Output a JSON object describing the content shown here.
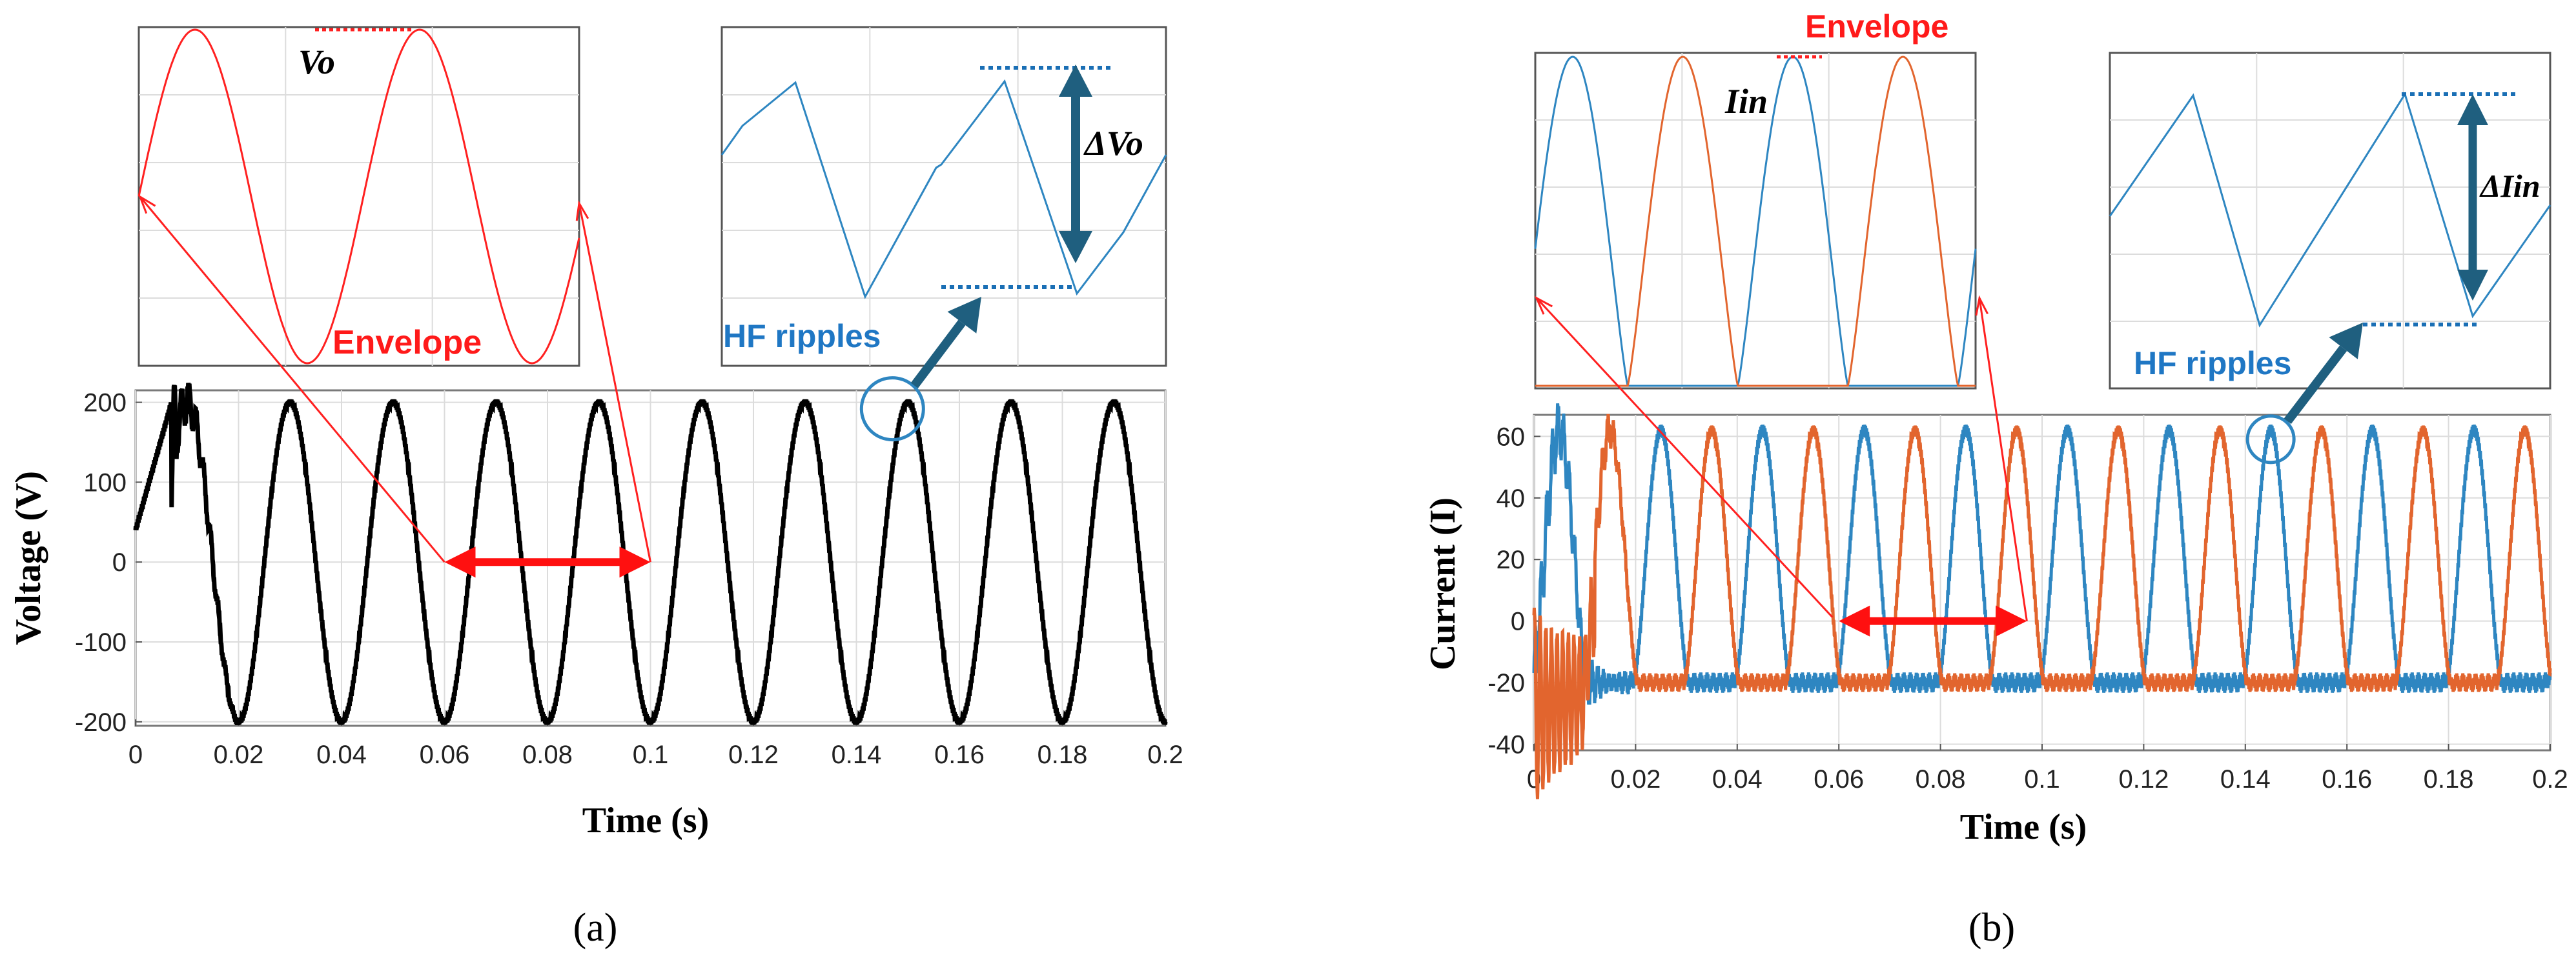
{
  "colors": {
    "series_black": "#000000",
    "series_blue": "#2e86c1",
    "series_orange": "#e2652e",
    "envelope_red": "#ff2020",
    "envelope_label": "#ff1a1a",
    "hf_label": "#1f77c4",
    "dark_teal": "#1f5f7f",
    "dashed_blue": "#1a6fb5",
    "arrow_red": "#ff1010",
    "grid": "#dcdcdc"
  },
  "panel_labels": [
    "(a)",
    "(b)"
  ],
  "chart_data": [
    {
      "type": "line",
      "panel": "(a)",
      "xlabel": "Time (s)",
      "ylabel": "Voltage (V)",
      "xlim": [
        0,
        0.2
      ],
      "ylim": [
        -205,
        215
      ],
      "x_ticks": [
        "0",
        "0.02",
        "0.04",
        "0.06",
        "0.08",
        "0.1",
        "0.12",
        "0.14",
        "0.16",
        "0.18",
        "0.2"
      ],
      "y_ticks": [
        "200",
        "100",
        "0",
        "-100",
        "-200"
      ],
      "x_tick_values": [
        0,
        0.02,
        0.04,
        0.06,
        0.08,
        0.1,
        0.12,
        0.14,
        0.16,
        0.18,
        0.2
      ],
      "y_tick_values": [
        200,
        100,
        0,
        -100,
        -200
      ],
      "grid": true,
      "series": [
        {
          "color_key": "series_black",
          "frequency_hz": 50,
          "amplitude": 200,
          "phase_deg": -90,
          "ripple_band": 8,
          "transient_until_s": 0.02
        }
      ],
      "period_marker": {
        "from_x": 0.06,
        "to_x": 0.1,
        "y": 0
      },
      "ripple_marker": {
        "x": 0.147,
        "y": 200
      },
      "insets": [
        {
          "type": "line",
          "content": "envelope",
          "label": "Envelope",
          "value_label": "Vo",
          "cycles": 2
        },
        {
          "type": "line",
          "content": "hf_ripple",
          "label": "HF ripples",
          "delta_label": "ΔVo"
        }
      ]
    },
    {
      "type": "line",
      "panel": "(b)",
      "xlabel": "Time (s)",
      "ylabel": "Current (I)",
      "xlim": [
        0,
        0.2
      ],
      "ylim": [
        -42,
        67
      ],
      "x_ticks": [
        "0",
        "0.02",
        "0.04",
        "0.06",
        "0.08",
        "0.1",
        "0.12",
        "0.14",
        "0.16",
        "0.18",
        "0.2"
      ],
      "y_ticks": [
        "60",
        "40",
        "20",
        "0",
        "-20",
        "-40"
      ],
      "x_tick_values": [
        0,
        0.02,
        0.04,
        0.06,
        0.08,
        0.1,
        0.12,
        0.14,
        0.16,
        0.18,
        0.2
      ],
      "y_tick_values": [
        60,
        40,
        20,
        0,
        -20,
        -40
      ],
      "grid": true,
      "series": [
        {
          "color_key": "series_blue",
          "frequency_hz": 50,
          "peak": 62,
          "trough": -20,
          "phase_offset_s": 0.005
        },
        {
          "color_key": "series_orange",
          "frequency_hz": 50,
          "peak": 62,
          "trough": -20,
          "phase_offset_s": 0.015
        }
      ],
      "period_marker": {
        "from_x": 0.06,
        "to_x": 0.097,
        "y": 0
      },
      "ripple_marker": {
        "x": 0.145,
        "y": 62
      },
      "insets": [
        {
          "type": "line",
          "content": "envelope",
          "label": "Envelope",
          "value_label": "Iin",
          "cycles": 2
        },
        {
          "type": "line",
          "content": "hf_ripple",
          "label": "HF ripples",
          "delta_label": "ΔIin"
        }
      ]
    }
  ]
}
